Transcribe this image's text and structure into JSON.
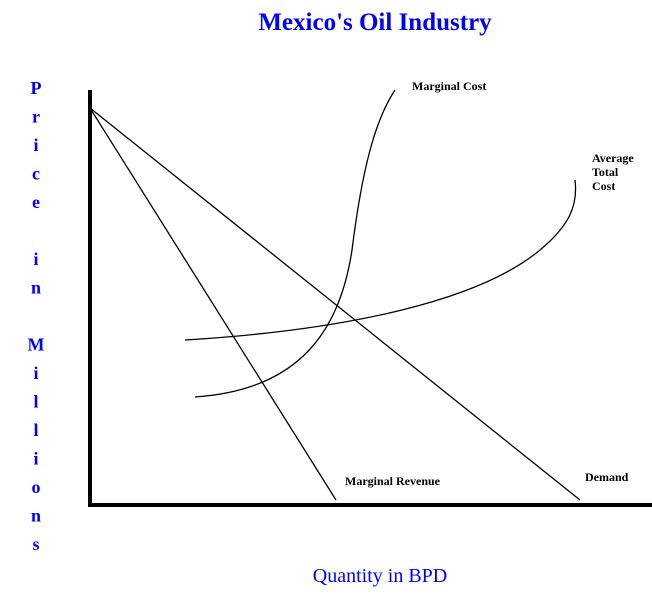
{
  "title": "Mexico's Oil Industry",
  "y_axis_label": "Price in Millions",
  "x_axis_label": "Quantity in BPD",
  "curves": {
    "marginal_cost": "Marginal Cost",
    "average_total_cost": [
      "Average",
      "Total",
      "Cost"
    ],
    "marginal_revenue": "Marginal Revenue",
    "demand": "Demand"
  }
}
